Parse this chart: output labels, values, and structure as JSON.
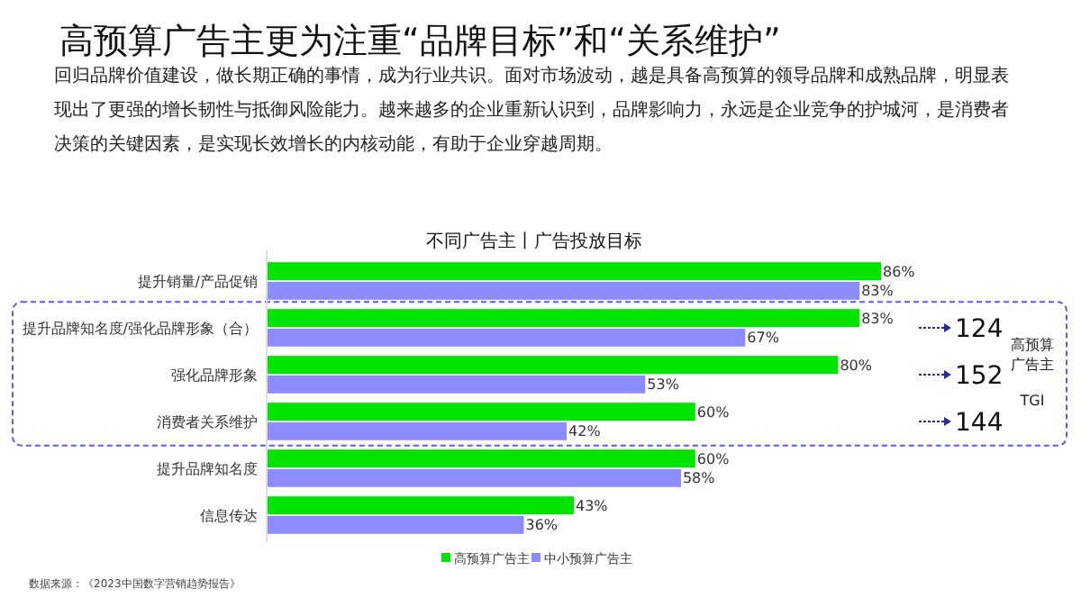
{
  "chart_data": {
    "type": "bar",
    "orientation": "horizontal",
    "title": "不同广告主丨广告投放目标",
    "subtitle": "高预算广告主更为注重“品牌目标”和“关系维护”",
    "categories": [
      "提升销量/产品促销",
      "提升品牌知名度/强化品牌形象（合）",
      "强化品牌形象",
      "消费者关系维护",
      "提升品牌知名度",
      "信息传达"
    ],
    "series": [
      {
        "name": "高预算广告主",
        "color": "#00e400",
        "values": [
          86,
          83,
          80,
          60,
          60,
          43
        ],
        "value_labels": [
          "86%",
          "83%",
          "80%",
          "60%",
          "60%",
          "43%"
        ]
      },
      {
        "name": "中小预算广告主",
        "color": "#8c8cff",
        "values": [
          83,
          67,
          53,
          42,
          58,
          36
        ],
        "value_labels": [
          "83%",
          "67%",
          "53%",
          "42%",
          "58%",
          "36%"
        ]
      }
    ],
    "legend": "bottom",
    "annotations": [
      "回归品牌价值建设，做长期正确的事情，成为行业共识。面对市场波动，越是具备高预算的领导品牌和成熟品牌，明显表现出了更强的增长韧性与抵御风险能力。越来越多的企业重新认识到，品牌影响力，永远是企业竞争的护城河，是消费者决策的关键因素，是实现长效增长的内核动能，有助于企业穿越周期。",
      "124",
      "152",
      "144",
      "高预算广告主",
      "TGI",
      "数据来源：《2023中国数字营销趋势报告》"
    ]
  }
}
